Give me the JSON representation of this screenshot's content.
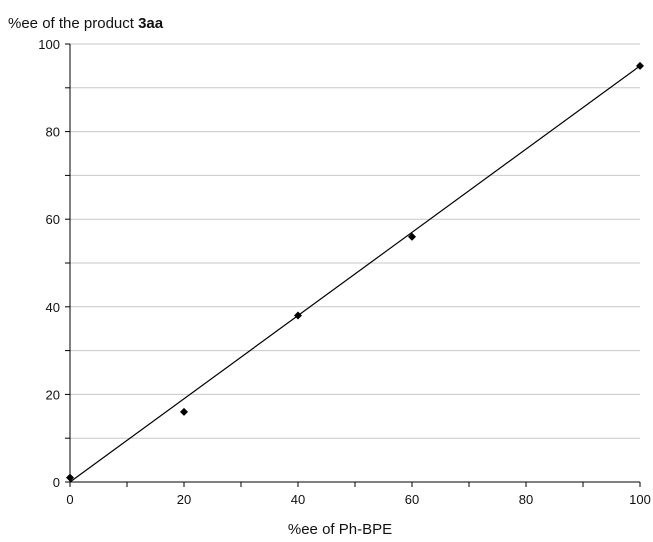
{
  "chart_data": {
    "type": "scatter",
    "ylabel_prefix": "%ee of the product ",
    "ylabel_bold": "3aa",
    "xlabel": "%ee of Ph-BPE",
    "xlim": [
      0,
      100
    ],
    "ylim": [
      0,
      100
    ],
    "x_ticks": [
      "0",
      "20",
      "40",
      "60",
      "80",
      "100"
    ],
    "y_ticks": [
      "0",
      "20",
      "40",
      "60",
      "80",
      "100"
    ],
    "grid": "horizontal",
    "legend": "none",
    "series": [
      {
        "points": [
          {
            "x": 0,
            "y": 1
          },
          {
            "x": 20,
            "y": 16
          },
          {
            "x": 40,
            "y": 38
          },
          {
            "x": 60,
            "y": 56
          },
          {
            "x": 100,
            "y": 95
          }
        ]
      }
    ],
    "trendline": {
      "x": [
        0,
        100
      ],
      "y": [
        0,
        95
      ]
    },
    "colors": {
      "marker": "#000000",
      "line": "#000000",
      "grid": "#c8c8c8",
      "axis": "#000000"
    }
  }
}
